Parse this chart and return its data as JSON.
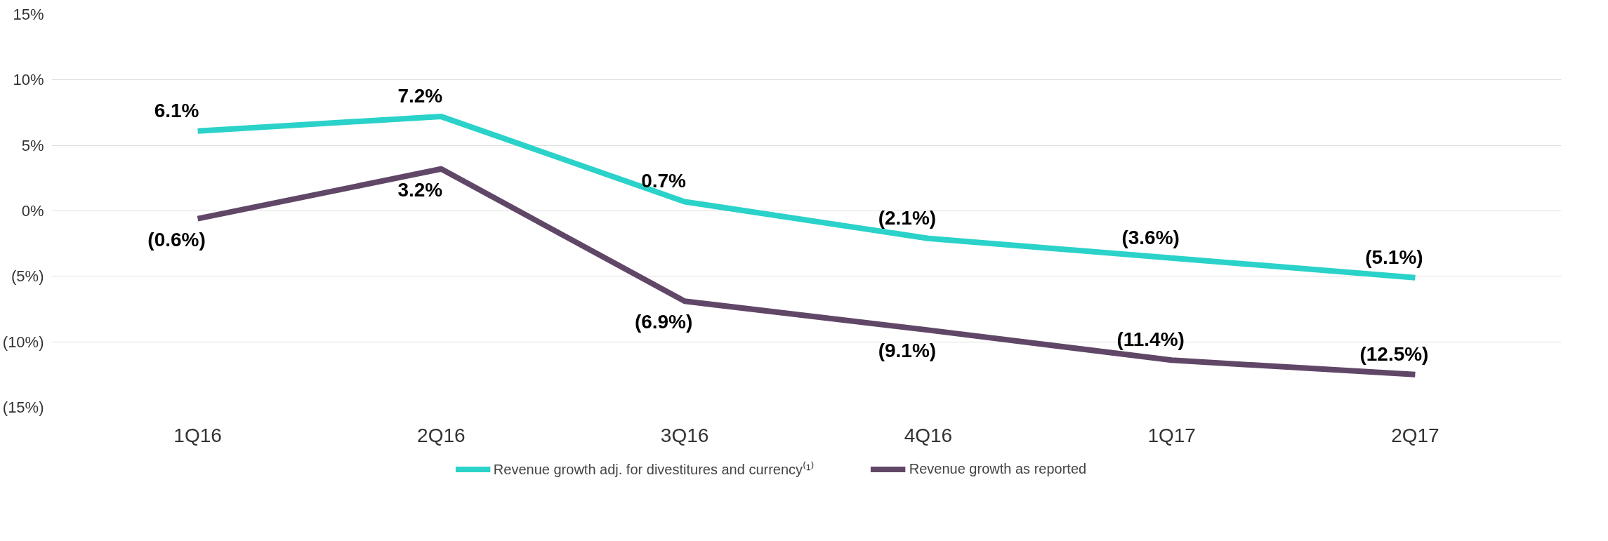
{
  "chart_data": {
    "type": "line",
    "categories": [
      "1Q16",
      "2Q16",
      "3Q16",
      "4Q16",
      "1Q17",
      "2Q17"
    ],
    "series": [
      {
        "name": "Revenue growth adj. for divestitures and currency⁽¹⁾",
        "color": "#2ad2c9",
        "values": [
          6.1,
          7.2,
          0.7,
          -2.1,
          -3.6,
          -5.1
        ],
        "value_labels": [
          "6.1%",
          "7.2%",
          "0.7%",
          "(2.1%)",
          "(3.6%)",
          "(5.1%)"
        ]
      },
      {
        "name": "Revenue growth as reported",
        "color": "#614767",
        "values": [
          -0.6,
          3.2,
          -6.9,
          -9.1,
          -11.4,
          -12.5
        ],
        "value_labels": [
          "(0.6%)",
          "3.2%",
          "(6.9%)",
          "(9.1%)",
          "(11.4%)",
          "(12.5%)"
        ]
      }
    ],
    "ylim": [
      -15,
      15
    ],
    "yticks": [
      {
        "value": -15,
        "label": "(15%)"
      },
      {
        "value": -10,
        "label": "(10%)"
      },
      {
        "value": -5,
        "label": "(5%)"
      },
      {
        "value": 0,
        "label": "0%"
      },
      {
        "value": 5,
        "label": "5%"
      },
      {
        "value": 10,
        "label": "10%"
      },
      {
        "value": 15,
        "label": "15%"
      }
    ],
    "grid": "y",
    "legend": "bottom",
    "marker": "none",
    "line_style": "solid"
  }
}
